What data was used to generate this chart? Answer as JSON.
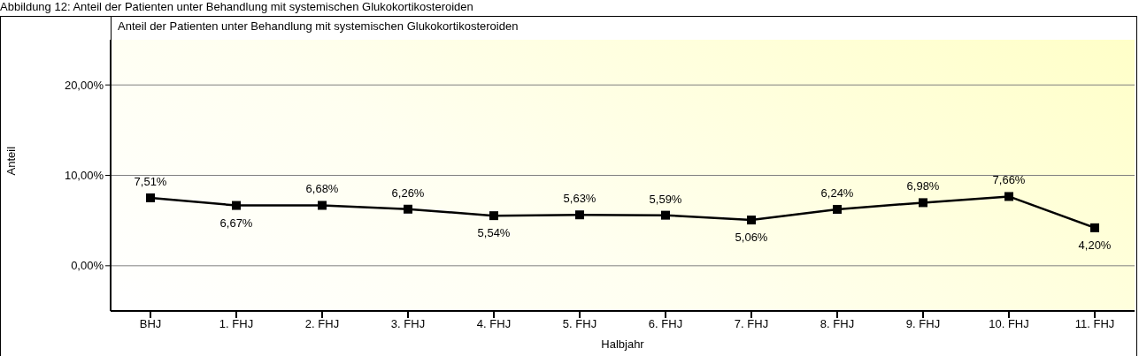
{
  "chart_data": {
    "type": "line",
    "title": "Abbildung 12: Anteil der Patienten unter Behandlung mit systemischen Glukokortikosteroiden",
    "subtitle": "Anteil der Patienten unter Behandlung mit systemischen Glukokortikosteroiden",
    "xlabel": "Halbjahr",
    "ylabel": "Anteil",
    "categories": [
      "BHJ",
      "1. FHJ",
      "2. FHJ",
      "3. FHJ",
      "4. FHJ",
      "5. FHJ",
      "6. FHJ",
      "7. FHJ",
      "8. FHJ",
      "9. FHJ",
      "10. FHJ",
      "11. FHJ"
    ],
    "series": [
      {
        "color": "#000000",
        "values": [
          7.51,
          6.67,
          6.68,
          6.26,
          5.54,
          5.63,
          5.59,
          5.06,
          6.24,
          6.98,
          7.66,
          4.2
        ],
        "value_labels": [
          "7,51%",
          "6,67%",
          "6,68%",
          "6,26%",
          "5,54%",
          "5,63%",
          "5,59%",
          "5,06%",
          "6,24%",
          "6,98%",
          "7,66%",
          "4,20%"
        ]
      }
    ],
    "ylim": [
      -5,
      25
    ],
    "yticks": [
      {
        "value": 0,
        "label": "0,00%"
      },
      {
        "value": 10,
        "label": "10,00%"
      },
      {
        "value": 20,
        "label": "20,00%"
      }
    ],
    "grid": "y",
    "marker": "square",
    "line_style": "solid"
  }
}
